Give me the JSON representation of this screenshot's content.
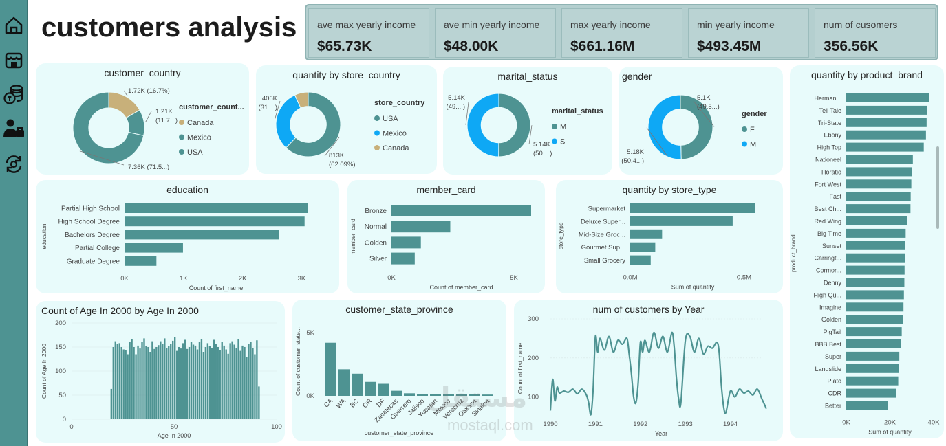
{
  "page": {
    "title": "customers analysis"
  },
  "sidebar": [
    {
      "id": "home",
      "icon": "home-icon"
    },
    {
      "id": "store",
      "icon": "store-icon"
    },
    {
      "id": "money",
      "icon": "money-icon"
    },
    {
      "id": "people",
      "icon": "people-icon"
    },
    {
      "id": "refresh",
      "icon": "refresh-icon"
    }
  ],
  "kpis": [
    {
      "label": "ave max yearly income",
      "value": "$65.73K"
    },
    {
      "label": "ave min yearly income",
      "value": "$48.00K"
    },
    {
      "label": "max yearly income",
      "value": "$661.16M"
    },
    {
      "label": "min yearly income",
      "value": "$493.45M"
    },
    {
      "label": "num of cusomers",
      "value": "356.56K"
    }
  ],
  "colors": {
    "teal": "#4e9392",
    "blue": "#0ea8f5",
    "tan": "#c8b07a",
    "card": "#e8fbfb",
    "sidebar": "#4e9392"
  },
  "watermark": {
    "arabic": "مستقل",
    "latin": "mostaql.com"
  },
  "chart_data": [
    {
      "id": "customer_country",
      "type": "pie",
      "title": "customer_country",
      "legend_title": "customer_count...",
      "legend": [
        "Canada",
        "Mexico",
        "USA"
      ],
      "legend_colors": [
        "#c8b07a",
        "#4e9392",
        "#4e9392"
      ],
      "slices": [
        {
          "name": "Canada",
          "value": 16.7,
          "color": "#c8b07a",
          "label": [
            "1.72K (16.7%)"
          ]
        },
        {
          "name": "Mexico",
          "value": 11.8,
          "color": "#4e9392",
          "label": [
            "1.21K",
            "(11.7...)"
          ]
        },
        {
          "name": "USA",
          "value": 71.5,
          "color": "#4e9392",
          "label": [
            "7.36K (71.5...)"
          ]
        }
      ]
    },
    {
      "id": "store_country",
      "type": "pie",
      "title": "quantity by store_country",
      "legend_title": "store_country",
      "legend": [
        "USA",
        "Mexico",
        "Canada"
      ],
      "legend_colors": [
        "#4e9392",
        "#0ea8f5",
        "#c8b07a"
      ],
      "slices": [
        {
          "name": "USA",
          "value": 62.09,
          "color": "#4e9392",
          "label": [
            "813K",
            "(62.09%)"
          ]
        },
        {
          "name": "Mexico",
          "value": 31.1,
          "color": "#0ea8f5",
          "label": [
            "406K",
            "(31....)"
          ]
        },
        {
          "name": "Canada",
          "value": 6.81,
          "color": "#c8b07a",
          "label": []
        }
      ]
    },
    {
      "id": "marital_status",
      "type": "pie",
      "title": "marital_status",
      "legend_title": "marital_status",
      "legend": [
        "M",
        "S"
      ],
      "legend_colors": [
        "#4e9392",
        "#0ea8f5"
      ],
      "slices": [
        {
          "name": "M",
          "value": 50.1,
          "color": "#4e9392",
          "label": [
            "5.14K",
            "(50....)"
          ]
        },
        {
          "name": "S",
          "value": 49.9,
          "color": "#0ea8f5",
          "label": [
            "5.14K",
            "(49....)"
          ]
        }
      ]
    },
    {
      "id": "gender",
      "type": "pie",
      "title": "gender",
      "legend_title": "gender",
      "legend": [
        "F",
        "M"
      ],
      "legend_colors": [
        "#4e9392",
        "#0ea8f5"
      ],
      "slices": [
        {
          "name": "F",
          "value": 49.6,
          "color": "#4e9392",
          "label": [
            "5.1K",
            "(49.5...)"
          ]
        },
        {
          "name": "M",
          "value": 50.4,
          "color": "#0ea8f5",
          "label": [
            "5.18K",
            "(50.4...)"
          ]
        }
      ]
    },
    {
      "id": "education",
      "type": "bar",
      "orientation": "horizontal",
      "title": "education",
      "categories": [
        "Partial High School",
        "High School Degree",
        "Bachelors Degree",
        "Partial College",
        "Graduate Degree"
      ],
      "values": [
        3100,
        3050,
        2620,
        990,
        540
      ],
      "xlabel": "Count of first_name",
      "ylabel": "education",
      "xlim": [
        0,
        3100
      ],
      "ticks": [
        0,
        1000,
        2000,
        3000
      ],
      "tick_labels": [
        "0K",
        "1K",
        "2K",
        "3K"
      ]
    },
    {
      "id": "member_card",
      "type": "bar",
      "orientation": "horizontal",
      "title": "member_card",
      "categories": [
        "Bronze",
        "Normal",
        "Golden",
        "Silver"
      ],
      "values": [
        5700,
        2400,
        1200,
        950
      ],
      "xlabel": "Count of member_card",
      "ylabel": "member_card",
      "xlim": [
        0,
        5700
      ],
      "ticks": [
        0,
        5000
      ],
      "tick_labels": [
        "0K",
        "5K"
      ]
    },
    {
      "id": "store_type",
      "type": "bar",
      "orientation": "horizontal",
      "title": "quantity by store_type",
      "categories": [
        "Supermarket",
        "Deluxe Super...",
        "Mid-Size Groc...",
        "Gourmet Sup...",
        "Small Grocery"
      ],
      "values": [
        0.55,
        0.45,
        0.14,
        0.11,
        0.09
      ],
      "xlabel": "Sum of quantity",
      "ylabel": "store_type",
      "xlim": [
        0,
        0.55
      ],
      "ticks": [
        0,
        0.5
      ],
      "tick_labels": [
        "0.0M",
        "0.5M"
      ]
    },
    {
      "id": "product_brand",
      "type": "bar",
      "orientation": "horizontal",
      "title": "quantity by product_brand",
      "categories": [
        "Herman...",
        "Tell Tale",
        "Tri-State",
        "Ebony",
        "High Top",
        "Nationeel",
        "Horatio",
        "Fort West",
        "Fast",
        "Best Ch...",
        "Red Wing",
        "Big Time",
        "Sunset",
        "Carringt...",
        "Cormor...",
        "Denny",
        "High Qu...",
        "Imagine",
        "Golden",
        "PigTail",
        "BBB Best",
        "Super",
        "Landslide",
        "Plato",
        "CDR",
        "Better"
      ],
      "values": [
        38000,
        37000,
        36800,
        36500,
        35500,
        30500,
        30000,
        29800,
        29500,
        29400,
        28000,
        27200,
        27000,
        26800,
        26700,
        26600,
        26400,
        26200,
        25900,
        25400,
        25000,
        24300,
        24000,
        23800,
        22800,
        19000
      ],
      "xlabel": "Sum of quantity",
      "ylabel": "product_brand",
      "xlim": [
        0,
        40000
      ],
      "ticks": [
        0,
        20000,
        40000
      ],
      "tick_labels": [
        "0K",
        "20K",
        "40K"
      ]
    },
    {
      "id": "age_2000",
      "type": "bar",
      "title": "Count of Age In 2000 by Age In 2000",
      "x_start": 19,
      "values": [
        63,
        150,
        162,
        156,
        158,
        150,
        145,
        143,
        135,
        160,
        166,
        150,
        135,
        153,
        147,
        160,
        168,
        152,
        150,
        140,
        162,
        146,
        150,
        154,
        162,
        157,
        168,
        148,
        152,
        156,
        163,
        170,
        142,
        150,
        147,
        158,
        165,
        146,
        150,
        160,
        155,
        153,
        145,
        160,
        166,
        140,
        150,
        158,
        152,
        148,
        165,
        156,
        150,
        143,
        160,
        153,
        145,
        136,
        158,
        162,
        155,
        148,
        166,
        142,
        153,
        150,
        130,
        157,
        160,
        148,
        135,
        164,
        68
      ],
      "xlabel": "Age In 2000",
      "ylabel": "Count of Age In 2000",
      "xlim": [
        0,
        100
      ],
      "ylim": [
        0,
        200
      ],
      "xticks": [
        0,
        50,
        100
      ],
      "yticks": [
        0,
        50,
        100,
        150,
        200
      ]
    },
    {
      "id": "state_province",
      "type": "bar",
      "title": "customer_state_province",
      "categories": [
        "CA",
        "WA",
        "BC",
        "OR",
        "DF",
        "Zacatecas",
        "Guerrero",
        "Jalisco",
        "Yucatan",
        "Mexico",
        "Veracruz",
        "Oaxaca",
        "Sinaloa"
      ],
      "values": [
        4200,
        2100,
        1750,
        1100,
        950,
        400,
        200,
        150,
        150,
        130,
        120,
        110,
        100
      ],
      "xlabel": "customer_state_province",
      "ylabel": "Count of customer_state...",
      "ylim": [
        0,
        5000
      ],
      "yticks": [
        0,
        5000
      ],
      "ytick_labels": [
        "0K",
        "5K"
      ]
    },
    {
      "id": "customers_by_year",
      "type": "line",
      "title": "num of customers by Year",
      "x": [
        1990.0,
        1990.05,
        1990.1,
        1990.15,
        1990.2,
        1990.3,
        1990.4,
        1990.5,
        1990.6,
        1990.7,
        1990.8,
        1990.85,
        1990.9,
        1990.95,
        1991.0,
        1991.05,
        1991.1,
        1991.2,
        1991.3,
        1991.4,
        1991.5,
        1991.6,
        1991.7,
        1991.75,
        1991.8,
        1991.85,
        1991.9,
        1991.95,
        1992.0,
        1992.05,
        1992.1,
        1992.2,
        1992.3,
        1992.4,
        1992.5,
        1992.6,
        1992.7,
        1992.75,
        1992.8,
        1992.85,
        1992.9,
        1993.0,
        1993.1,
        1993.2,
        1993.3,
        1993.4,
        1993.5,
        1993.6,
        1993.7,
        1993.75,
        1993.8,
        1993.85,
        1993.9,
        1994.0,
        1994.1,
        1994.2,
        1994.3,
        1994.4,
        1994.5,
        1994.6,
        1994.7,
        1994.8
      ],
      "y": [
        65,
        145,
        90,
        125,
        110,
        115,
        112,
        120,
        108,
        120,
        105,
        85,
        55,
        120,
        255,
        215,
        250,
        220,
        255,
        215,
        245,
        235,
        250,
        210,
        160,
        100,
        85,
        135,
        240,
        215,
        245,
        215,
        265,
        225,
        255,
        215,
        265,
        230,
        150,
        95,
        85,
        245,
        255,
        215,
        250,
        210,
        230,
        225,
        240,
        215,
        130,
        75,
        60,
        115,
        100,
        120,
        110,
        115,
        105,
        120,
        95,
        70
      ],
      "xlabel": "Year",
      "ylabel": "Count of first_name",
      "xlim": [
        1990,
        1995
      ],
      "ylim": [
        50,
        300
      ],
      "xticks": [
        1990,
        1991,
        1992,
        1993,
        1994
      ],
      "yticks": [
        100,
        200,
        300
      ]
    }
  ]
}
